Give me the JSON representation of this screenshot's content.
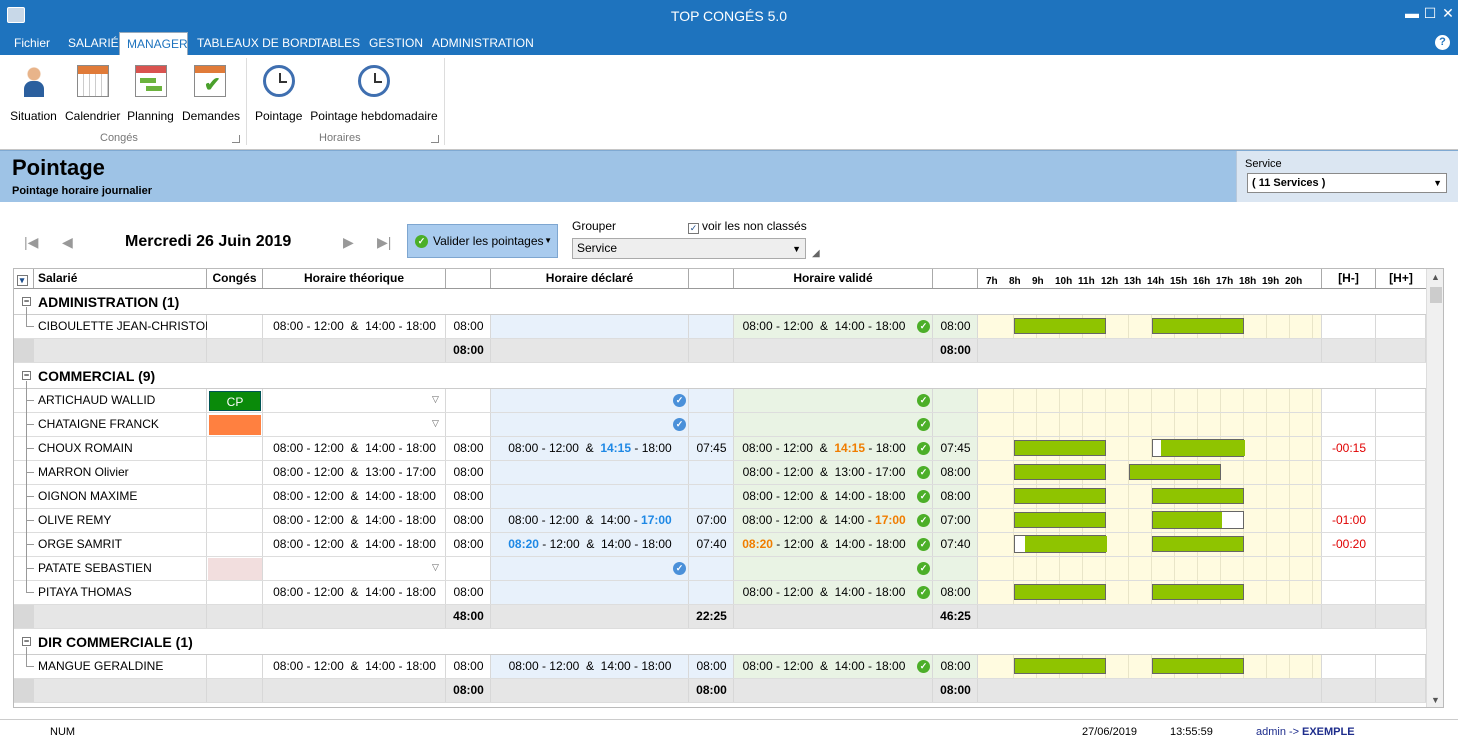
{
  "window": {
    "title": "TOP CONGÉS 5.0",
    "minimize": "▬",
    "maximize": "☐",
    "close": "✕"
  },
  "menu": {
    "items": [
      "Fichier",
      "SALARIÉ",
      "MANAGER",
      "TABLEAUX DE BORD",
      "TABLES",
      "GESTION",
      "ADMINISTRATION"
    ],
    "active": "MANAGER",
    "help": "?"
  },
  "ribbon": {
    "buttons": [
      {
        "label": "Situation",
        "icon": "person-icon"
      },
      {
        "label": "Calendrier",
        "icon": "calendar-icon"
      },
      {
        "label": "Planning",
        "icon": "planning-icon"
      },
      {
        "label": "Demandes",
        "icon": "requests-icon"
      },
      {
        "label": "Pointage",
        "icon": "clock-icon"
      },
      {
        "label": "Pointage hebdomadaire",
        "icon": "weekly-clock-icon"
      }
    ],
    "groups": [
      "Congés",
      "Horaires"
    ]
  },
  "header": {
    "title": "Pointage",
    "subtitle": "Pointage horaire journalier",
    "service_label": "Service",
    "service_value": "( 11 Services )"
  },
  "toolbar": {
    "date": "Mercredi 26 Juin 2019",
    "valider": "Valider les pointages",
    "grouper_label": "Grouper",
    "grouper_value": "Service",
    "voir": "voir les non classés",
    "voir_checked": true
  },
  "grid": {
    "headers": [
      "Salarié",
      "Congés",
      "Horaire théorique",
      "Horaire déclaré",
      "Horaire validé",
      "[H-]",
      "[H+]"
    ],
    "hours": [
      "7h",
      "8h",
      "9h",
      "10h",
      "11h",
      "12h",
      "13h",
      "14h",
      "15h",
      "16h",
      "17h",
      "18h",
      "19h",
      "20h"
    ],
    "groups": [
      {
        "name": "ADMINISTRATION (1)",
        "rows": [
          {
            "name": "CIBOULETTE JEAN-CHRISTOPHE",
            "conge": "",
            "theo": "08:00 - 12:00  &  14:00 - 18:00",
            "theo_tot": "08:00",
            "decl": [],
            "decl_tot": "",
            "valid": [
              [
                "08:00",
                ""
              ],
              " - 12:00  &  ",
              [
                "14:00",
                ""
              ],
              " - 18:00"
            ],
            "valid_tot": "08:00",
            "hm": "",
            "bars": [
              [
                8,
                12
              ],
              [
                14,
                18
              ]
            ],
            "frames": []
          }
        ],
        "totals": {
          "theo": "08:00",
          "decl": "",
          "valid": "08:00"
        }
      },
      {
        "name": "COMMERCIAL (9)",
        "rows": [
          {
            "name": "ARTICHAUD WALLID",
            "conge": "CP",
            "dropdown": true,
            "theo": "",
            "theo_tot": "",
            "decl": [],
            "decl_tot": "",
            "declcheck": true,
            "valid": [],
            "valid_tot": "",
            "hm": "",
            "bars": [],
            "frames": []
          },
          {
            "name": "CHATAIGNE FRANCK",
            "conge": "orange",
            "dropdown": true,
            "theo": "",
            "theo_tot": "",
            "decl": [],
            "decl_tot": "",
            "declcheck": true,
            "valid": [],
            "valid_tot": "",
            "hm": "",
            "bars": [],
            "frames": []
          },
          {
            "name": "CHOUX ROMAIN",
            "conge": "",
            "theo": "08:00 - 12:00  &  14:00 - 18:00",
            "theo_tot": "08:00",
            "decl": [
              [
                "08:00",
                ""
              ],
              " - 12:00  &  ",
              [
                "14:15",
                "blue"
              ],
              " - 18:00"
            ],
            "decl_tot": "07:45",
            "valid": [
              [
                "08:00",
                ""
              ],
              " - 12:00  &  ",
              [
                "14:15",
                "orange"
              ],
              " - 18:00"
            ],
            "valid_tot": "07:45",
            "hm": "-00:15",
            "bars": [
              [
                8,
                12
              ]
            ],
            "frames": [
              [
                14,
                18,
                14.25,
                18
              ]
            ]
          },
          {
            "name": "MARRON Olivier",
            "conge": "",
            "theo": "08:00 - 12:00  &  13:00 - 17:00",
            "theo_tot": "08:00",
            "decl": [],
            "decl_tot": "",
            "valid": [
              [
                "08:00",
                ""
              ],
              " - 12:00  &  ",
              [
                "13:00",
                ""
              ],
              " - 17:00"
            ],
            "valid_tot": "08:00",
            "hm": "",
            "bars": [
              [
                8,
                12
              ],
              [
                13,
                17
              ]
            ],
            "frames": []
          },
          {
            "name": "OIGNON MAXIME",
            "conge": "",
            "theo": "08:00 - 12:00  &  14:00 - 18:00",
            "theo_tot": "08:00",
            "decl": [],
            "decl_tot": "",
            "valid": [
              [
                "08:00",
                ""
              ],
              " - 12:00  &  ",
              [
                "14:00",
                ""
              ],
              " - 18:00"
            ],
            "valid_tot": "08:00",
            "hm": "",
            "bars": [
              [
                8,
                12
              ],
              [
                14,
                18
              ]
            ],
            "frames": []
          },
          {
            "name": "OLIVE REMY",
            "conge": "",
            "theo": "08:00 - 12:00  &  14:00 - 18:00",
            "theo_tot": "08:00",
            "decl": [
              [
                "08:00",
                ""
              ],
              " - 12:00  &  ",
              [
                "14:00",
                ""
              ],
              " - ",
              [
                "17:00",
                "blue"
              ]
            ],
            "decl_tot": "07:00",
            "valid": [
              [
                "08:00",
                ""
              ],
              " - 12:00  &  ",
              [
                "14:00",
                ""
              ],
              " - ",
              [
                "17:00",
                "orange"
              ]
            ],
            "valid_tot": "07:00",
            "hm": "-01:00",
            "bars": [
              [
                8,
                12
              ]
            ],
            "frames": [
              [
                14,
                18,
                14,
                17
              ]
            ]
          },
          {
            "name": "ORGE SAMRIT",
            "conge": "",
            "theo": "08:00 - 12:00  &  14:00 - 18:00",
            "theo_tot": "08:00",
            "decl": [
              [
                "08:20",
                "blue"
              ],
              " - 12:00  &  ",
              [
                "14:00",
                ""
              ],
              " - 18:00"
            ],
            "decl_tot": "07:40",
            "valid": [
              [
                "08:20",
                "orange"
              ],
              " - 12:00  &  ",
              [
                "14:00",
                ""
              ],
              " - 18:00"
            ],
            "valid_tot": "07:40",
            "hm": "-00:20",
            "bars": [
              [
                14,
                18
              ]
            ],
            "frames": [
              [
                8,
                12,
                8.33,
                12
              ]
            ]
          },
          {
            "name": "PATATE SEBASTIEN",
            "conge": "pink",
            "dropdown": true,
            "theo": "",
            "theo_tot": "",
            "decl": [],
            "decl_tot": "",
            "declcheck": true,
            "valid": [],
            "valid_tot": "",
            "hm": "",
            "bars": [],
            "frames": []
          },
          {
            "name": "PITAYA THOMAS",
            "conge": "",
            "theo": "08:00 - 12:00  &  14:00 - 18:00",
            "theo_tot": "08:00",
            "decl": [],
            "decl_tot": "",
            "valid": [
              [
                "08:00",
                ""
              ],
              " - 12:00  &  ",
              [
                "14:00",
                ""
              ],
              " - 18:00"
            ],
            "valid_tot": "08:00",
            "hm": "",
            "bars": [
              [
                8,
                12
              ],
              [
                14,
                18
              ]
            ],
            "frames": []
          }
        ],
        "totals": {
          "theo": "48:00",
          "decl": "22:25",
          "valid": "46:25"
        }
      },
      {
        "name": "DIR COMMERCIALE (1)",
        "rows": [
          {
            "name": "MANGUE GERALDINE",
            "conge": "",
            "theo": "08:00 - 12:00  &  14:00 - 18:00",
            "theo_tot": "08:00",
            "decl": [
              [
                "08:00",
                ""
              ],
              " - 12:00  &  ",
              [
                "14:00",
                ""
              ],
              " - 18:00"
            ],
            "decl_tot": "08:00",
            "valid": [
              [
                "08:00",
                ""
              ],
              " - 12:00  &  ",
              [
                "14:00",
                ""
              ],
              " - 18:00"
            ],
            "valid_tot": "08:00",
            "hm": "",
            "bars": [
              [
                8,
                12
              ],
              [
                14,
                18
              ]
            ],
            "frames": []
          }
        ],
        "totals": {
          "theo": "08:00",
          "decl": "08:00",
          "valid": "08:00"
        }
      }
    ]
  },
  "status": {
    "num": "NUM",
    "date": "27/06/2019",
    "time": "13:55:59",
    "user": "admin ->",
    "base": "EXEMPLE"
  },
  "colors": {
    "accent": "#1e73be",
    "bar": "#8fc400",
    "blue_time": "#1e88e5",
    "orange_time": "#f07d00",
    "negative": "#e00000",
    "cp": "#0a8a0a",
    "orange_conge": "#ff8040",
    "pink_conge": "#f2dede"
  }
}
